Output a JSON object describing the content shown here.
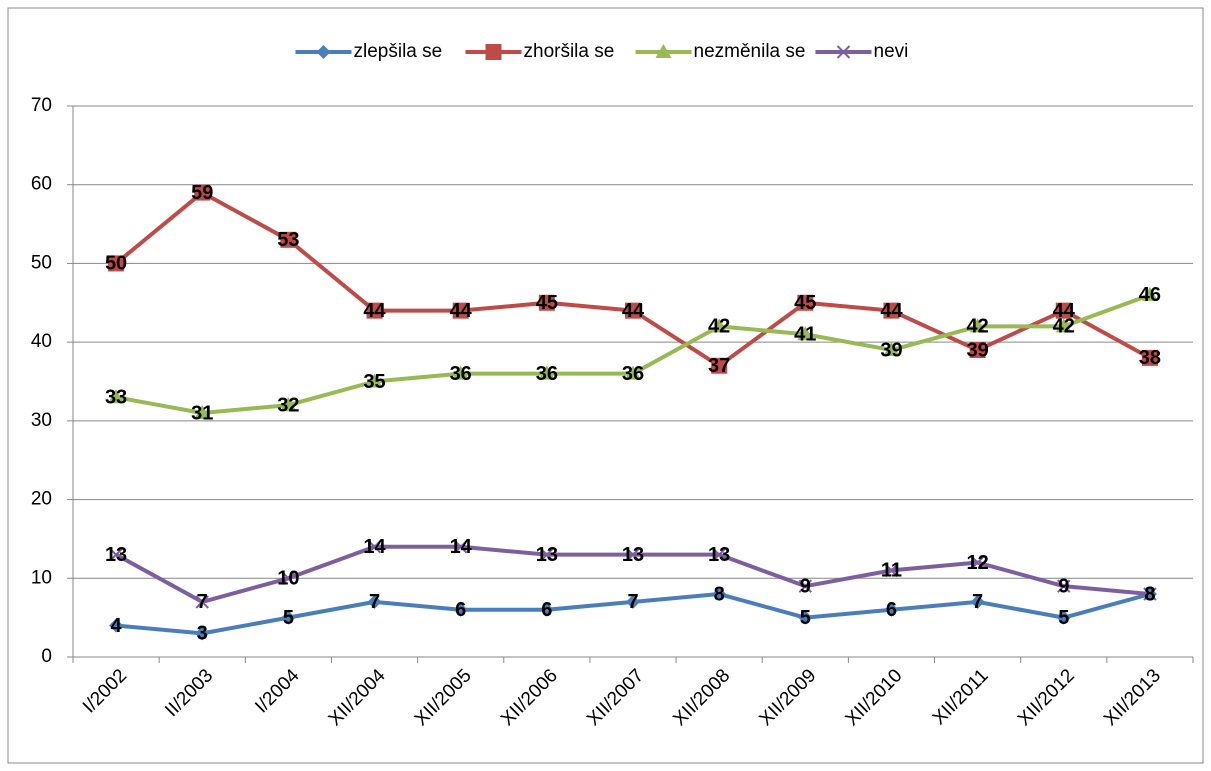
{
  "chart_data": {
    "type": "line",
    "categories": [
      "I/2002",
      "II/2003",
      "I/2004",
      "XII/2004",
      "XII/2005",
      "XII/2006",
      "XII/2007",
      "XII/2008",
      "XII/2009",
      "XII/2010",
      "XII/2011",
      "XII/2012",
      "XII/2013"
    ],
    "series": [
      {
        "name": "zlepšila se",
        "color": "#4a7ebb",
        "marker": "diamond",
        "values": [
          4,
          3,
          5,
          7,
          6,
          6,
          7,
          8,
          5,
          6,
          7,
          5,
          8
        ]
      },
      {
        "name": "zhoršila se",
        "color": "#be4b48",
        "marker": "square",
        "values": [
          50,
          59,
          53,
          44,
          44,
          45,
          44,
          37,
          45,
          44,
          39,
          44,
          38
        ]
      },
      {
        "name": "nezměnila se",
        "color": "#98b954",
        "marker": "triangle",
        "values": [
          33,
          31,
          32,
          35,
          36,
          36,
          36,
          42,
          41,
          39,
          42,
          42,
          46
        ]
      },
      {
        "name": "nevi",
        "color": "#7d5fa0",
        "marker": "x",
        "values": [
          13,
          7,
          10,
          14,
          14,
          13,
          13,
          13,
          9,
          11,
          12,
          9,
          8
        ]
      }
    ],
    "ylim": [
      0,
      70
    ],
    "yticks": [
      0,
      10,
      20,
      30,
      40,
      50,
      60,
      70
    ],
    "grid": true,
    "legend": "top"
  }
}
